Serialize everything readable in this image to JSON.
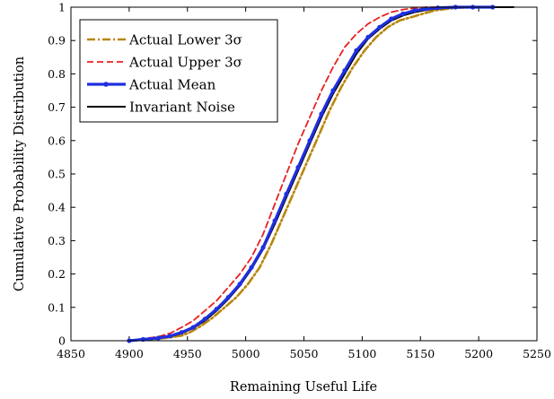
{
  "chart_data": {
    "type": "line",
    "xlabel": "Remaining Useful Life",
    "ylabel": "Cumulative Probability Distribution",
    "xlim": [
      4850,
      5250
    ],
    "ylim": [
      0,
      1
    ],
    "xticks": [
      "4850",
      "4900",
      "4950",
      "5000",
      "5050",
      "5100",
      "5150",
      "5200",
      "5250"
    ],
    "yticks": [
      "0",
      "0.1",
      "0.2",
      "0.3",
      "0.4",
      "0.5",
      "0.6",
      "0.7",
      "0.8",
      "0.9",
      "1"
    ],
    "grid": false,
    "legend_position": "top-left",
    "series": [
      {
        "name": "Actual Lower 3σ",
        "color": "#b8860b",
        "dash": "dash-dot",
        "x": [
          4900,
          4912,
          4925,
          4935,
          4945,
          4952,
          4962,
          4972,
          4982,
          4992,
          5002,
          5012,
          5022,
          5032,
          5042,
          5052,
          5062,
          5072,
          5082,
          5092,
          5102,
          5112,
          5122,
          5132,
          5142,
          5152,
          5162,
          5172,
          5182,
          5195
        ],
        "y": [
          0.0,
          0.003,
          0.006,
          0.01,
          0.015,
          0.025,
          0.045,
          0.07,
          0.1,
          0.13,
          0.17,
          0.22,
          0.29,
          0.37,
          0.45,
          0.53,
          0.61,
          0.69,
          0.76,
          0.82,
          0.87,
          0.91,
          0.94,
          0.96,
          0.97,
          0.98,
          0.99,
          0.995,
          0.998,
          1.0
        ]
      },
      {
        "name": "Actual Upper 3σ",
        "color": "#e8201f",
        "dash": "dashed",
        "x": [
          4900,
          4912,
          4925,
          4935,
          4945,
          4955,
          4965,
          4975,
          4985,
          4995,
          5005,
          5015,
          5025,
          5035,
          5045,
          5055,
          5065,
          5075,
          5085,
          5095,
          5105,
          5115,
          5125,
          5135,
          5145,
          5155,
          5170,
          5185
        ],
        "y": [
          0.0,
          0.006,
          0.012,
          0.022,
          0.04,
          0.06,
          0.09,
          0.12,
          0.16,
          0.2,
          0.25,
          0.32,
          0.41,
          0.5,
          0.59,
          0.67,
          0.75,
          0.82,
          0.88,
          0.92,
          0.95,
          0.97,
          0.985,
          0.993,
          0.997,
          1.0,
          1.0,
          1.0
        ]
      },
      {
        "name": "Actual Mean",
        "color": "#1f2fe0",
        "dash": "solid-marker",
        "x": [
          4900,
          4912,
          4925,
          4935,
          4945,
          4955,
          4965,
          4975,
          4985,
          4995,
          5005,
          5015,
          5025,
          5035,
          5045,
          5055,
          5065,
          5075,
          5085,
          5095,
          5105,
          5115,
          5125,
          5135,
          5145,
          5155,
          5165,
          5180,
          5195,
          5212
        ],
        "y": [
          0.0,
          0.004,
          0.008,
          0.014,
          0.025,
          0.04,
          0.065,
          0.095,
          0.13,
          0.17,
          0.22,
          0.28,
          0.36,
          0.44,
          0.52,
          0.6,
          0.68,
          0.75,
          0.81,
          0.87,
          0.91,
          0.94,
          0.965,
          0.98,
          0.99,
          0.995,
          0.998,
          1.0,
          1.0,
          1.0
        ]
      },
      {
        "name": "Invariant Noise",
        "color": "#000000",
        "dash": "solid",
        "x": [
          4900,
          4912,
          4925,
          4935,
          4945,
          4955,
          4965,
          4975,
          4985,
          4995,
          5005,
          5015,
          5025,
          5035,
          5045,
          5055,
          5065,
          5075,
          5085,
          5095,
          5105,
          5115,
          5125,
          5135,
          5145,
          5155,
          5165,
          5180,
          5200,
          5230
        ],
        "y": [
          0.0,
          0.003,
          0.007,
          0.012,
          0.022,
          0.038,
          0.06,
          0.09,
          0.125,
          0.165,
          0.215,
          0.275,
          0.35,
          0.43,
          0.51,
          0.59,
          0.67,
          0.74,
          0.8,
          0.86,
          0.905,
          0.935,
          0.96,
          0.975,
          0.985,
          0.992,
          0.996,
          0.999,
          1.0,
          1.0
        ]
      }
    ]
  }
}
